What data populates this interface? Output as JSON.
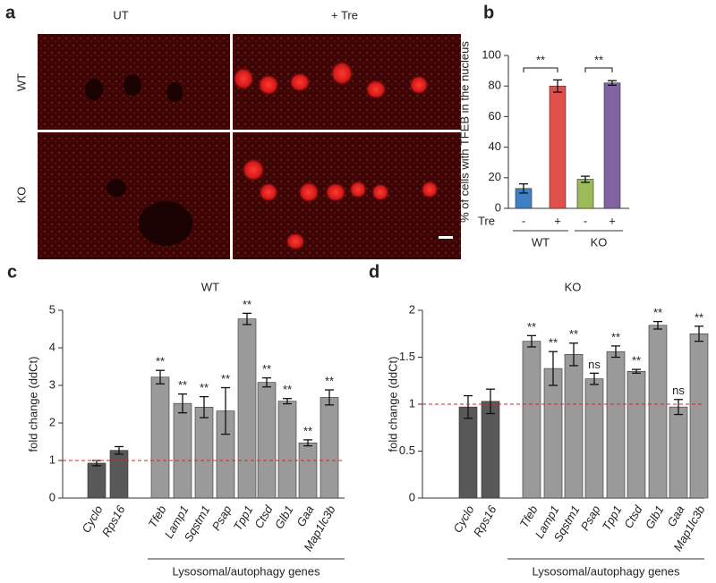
{
  "image_panel": {
    "letter": "a",
    "column_labels": [
      "UT",
      "+ Tre"
    ],
    "row_labels": [
      "WT",
      "KO"
    ]
  },
  "chart_data": [
    {
      "type": "bar",
      "letter": "b",
      "y_label": "% of cells with TFEB in the nucleus",
      "categories": [
        "-",
        "+",
        "-",
        "+"
      ],
      "values": [
        13,
        80,
        19,
        82
      ],
      "errors": [
        3,
        4,
        2,
        1.5
      ],
      "colors": [
        "#3f7fc4",
        "#e0504a",
        "#9bbb59",
        "#8064a2"
      ],
      "factor_label": "Tre",
      "groups": [
        "WT",
        "KO"
      ],
      "comparison_labels": [
        "**",
        "**"
      ],
      "ylim": [
        0,
        100
      ],
      "yticks": [
        0,
        20,
        40,
        60,
        80,
        100
      ]
    },
    {
      "type": "bar",
      "letter": "c",
      "title": "WT",
      "y_label": "fold change (ddCt)",
      "categories": [
        "Cyclo",
        "Rps16",
        "Tfeb",
        "Lamp1",
        "Sqstm1",
        "Psap",
        "Tpp1",
        "Ctsd",
        "Glb1",
        "Gaa",
        "Map1lc3b"
      ],
      "values": [
        0.93,
        1.27,
        3.22,
        2.52,
        2.42,
        2.32,
        4.77,
        3.08,
        2.58,
        1.47,
        2.68
      ],
      "errors": [
        0.07,
        0.1,
        0.18,
        0.25,
        0.28,
        0.62,
        0.15,
        0.12,
        0.07,
        0.08,
        0.2
      ],
      "colors": [
        "#585858",
        "#585858",
        "#9a9a9a",
        "#9a9a9a",
        "#9a9a9a",
        "#9a9a9a",
        "#9a9a9a",
        "#9a9a9a",
        "#9a9a9a",
        "#9a9a9a",
        "#9a9a9a"
      ],
      "significance": [
        null,
        null,
        "**",
        "**",
        "**",
        "**",
        "**",
        "**",
        "**",
        "**",
        "**"
      ],
      "group_label": "Lysosomal/autophagy genes",
      "reference_line": 1,
      "ylim": [
        0,
        5
      ],
      "yticks": [
        0,
        1,
        2,
        3,
        4,
        5
      ]
    },
    {
      "type": "bar",
      "letter": "d",
      "title": "KO",
      "y_label": "fold change (ddCt)",
      "categories": [
        "Cyclo",
        "Rps16",
        "Tfeb",
        "Lamp1",
        "Sqstm1",
        "Psap",
        "Tpp1",
        "Ctsd",
        "Glb1",
        "Gaa",
        "Map1lc3b"
      ],
      "values": [
        0.97,
        1.03,
        1.67,
        1.38,
        1.53,
        1.27,
        1.56,
        1.35,
        1.84,
        0.97,
        1.75
      ],
      "errors": [
        0.12,
        0.13,
        0.06,
        0.18,
        0.12,
        0.06,
        0.06,
        0.02,
        0.04,
        0.08,
        0.08
      ],
      "colors": [
        "#585858",
        "#585858",
        "#9a9a9a",
        "#9a9a9a",
        "#9a9a9a",
        "#9a9a9a",
        "#9a9a9a",
        "#9a9a9a",
        "#9a9a9a",
        "#9a9a9a",
        "#9a9a9a"
      ],
      "significance": [
        null,
        null,
        "**",
        "**",
        "**",
        "ns",
        "**",
        "**",
        "**",
        "ns",
        "**"
      ],
      "group_label": "Lysosomal/autophagy genes",
      "reference_line": 1,
      "ylim": [
        0,
        2
      ],
      "yticks": [
        0,
        0.5,
        1,
        1.5,
        2
      ]
    }
  ]
}
